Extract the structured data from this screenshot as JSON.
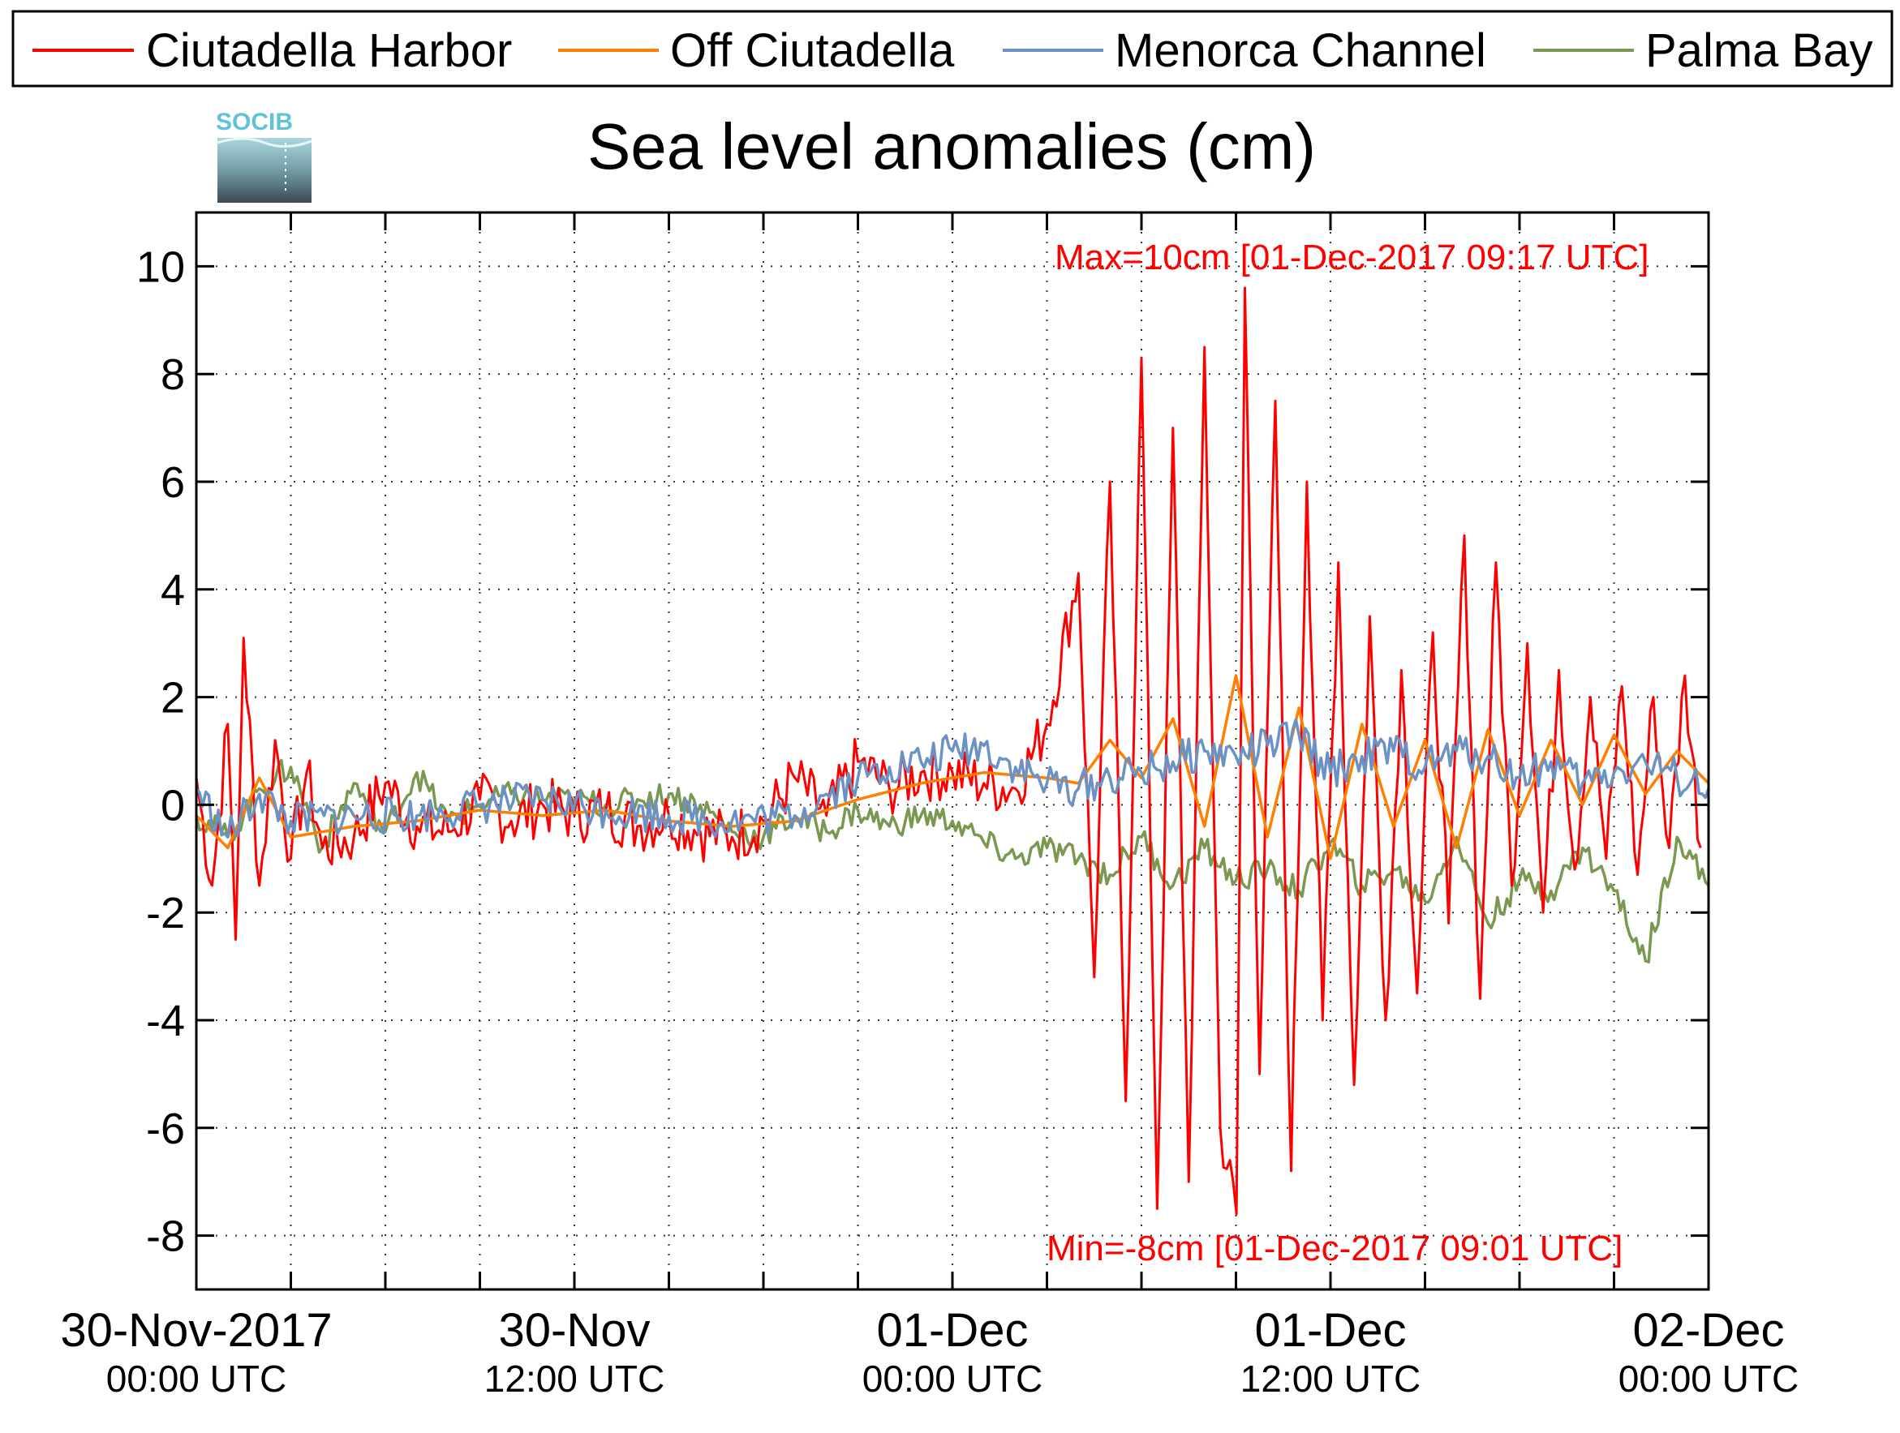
{
  "chart_data": {
    "type": "line",
    "title": "Sea level anomalies (cm)",
    "logo": "SOCIB",
    "xlabel": "",
    "ylabel": "",
    "ylim": [
      -9,
      11
    ],
    "yticks": [
      -8,
      -6,
      -4,
      -2,
      0,
      2,
      4,
      6,
      8,
      10
    ],
    "xlim": [
      "2017-11-30T00:00",
      "2017-12-02T00:00"
    ],
    "x_ticks": [
      {
        "date": "30-Nov-2017",
        "time": "00:00 UTC",
        "at": "2017-11-30T00:00"
      },
      {
        "date": "30-Nov",
        "time": "12:00 UTC",
        "at": "2017-11-30T12:00"
      },
      {
        "date": "01-Dec",
        "time": "00:00 UTC",
        "at": "2017-12-01T00:00"
      },
      {
        "date": "01-Dec",
        "time": "12:00 UTC",
        "at": "2017-12-01T12:00"
      },
      {
        "date": "02-Dec",
        "time": "00:00 UTC",
        "at": "2017-12-02T00:00"
      }
    ],
    "x_minor_ticks": [
      "2017-11-30T03:00",
      "2017-11-30T06:00",
      "2017-11-30T09:00",
      "2017-11-30T15:00",
      "2017-11-30T18:00",
      "2017-11-30T21:00",
      "2017-12-01T03:00",
      "2017-12-01T06:00",
      "2017-12-01T09:00",
      "2017-12-01T15:00",
      "2017-12-01T18:00",
      "2017-12-01T21:00"
    ],
    "grid": true,
    "legend_position": "top",
    "annotations": [
      {
        "text": "Max=10cm [01-Dec-2017 09:17 UTC]",
        "color": "#ff0000",
        "position": "top-right"
      },
      {
        "text": "Min=-8cm [01-Dec-2017 09:01 UTC]",
        "color": "#ff0000",
        "position": "bottom-right"
      }
    ],
    "series": [
      {
        "name": "Ciutadella Harbor",
        "color": "#ff0000",
        "x": [
          "2017-11-30T00:00",
          "2017-11-30T00:30",
          "2017-11-30T01:00",
          "2017-11-30T01:15",
          "2017-11-30T01:30",
          "2017-11-30T02:00",
          "2017-11-30T02:30",
          "2017-11-30T03:00",
          "2017-11-30T03:30",
          "2017-11-30T04:00",
          "2017-11-30T05:00",
          "2017-11-30T06:00",
          "2017-11-30T07:00",
          "2017-11-30T08:00",
          "2017-11-30T09:00",
          "2017-11-30T10:00",
          "2017-11-30T11:00",
          "2017-11-30T12:00",
          "2017-11-30T13:00",
          "2017-11-30T14:00",
          "2017-11-30T15:00",
          "2017-11-30T16:00",
          "2017-11-30T17:00",
          "2017-11-30T18:00",
          "2017-11-30T19:00",
          "2017-11-30T20:00",
          "2017-11-30T21:00",
          "2017-11-30T22:00",
          "2017-11-30T23:00",
          "2017-12-01T00:00",
          "2017-12-01T01:00",
          "2017-12-01T02:00",
          "2017-12-01T03:00",
          "2017-12-01T04:00",
          "2017-12-01T04:30",
          "2017-12-01T05:00",
          "2017-12-01T05:30",
          "2017-12-01T06:00",
          "2017-12-01T06:30",
          "2017-12-01T07:00",
          "2017-12-01T07:30",
          "2017-12-01T08:00",
          "2017-12-01T08:30",
          "2017-12-01T09:01",
          "2017-12-01T09:17",
          "2017-12-01T09:45",
          "2017-12-01T10:15",
          "2017-12-01T10:45",
          "2017-12-01T11:15",
          "2017-12-01T11:45",
          "2017-12-01T12:15",
          "2017-12-01T12:45",
          "2017-12-01T13:15",
          "2017-12-01T13:45",
          "2017-12-01T14:15",
          "2017-12-01T14:45",
          "2017-12-01T15:15",
          "2017-12-01T15:45",
          "2017-12-01T16:15",
          "2017-12-01T16:45",
          "2017-12-01T17:15",
          "2017-12-01T17:45",
          "2017-12-01T18:15",
          "2017-12-01T18:45",
          "2017-12-01T19:15",
          "2017-12-01T19:45",
          "2017-12-01T20:15",
          "2017-12-01T20:45",
          "2017-12-01T21:15",
          "2017-12-01T21:45",
          "2017-12-01T22:15",
          "2017-12-01T22:45",
          "2017-12-01T23:15",
          "2017-12-01T23:45"
        ],
        "values": [
          0.5,
          -1.5,
          1.5,
          -2.5,
          3.1,
          -1.5,
          1.2,
          -1.0,
          0.6,
          -0.8,
          -0.6,
          0.4,
          -0.4,
          -0.5,
          0.1,
          -0.3,
          0.0,
          -0.2,
          -0.1,
          -0.4,
          -0.2,
          -0.5,
          -0.6,
          -0.3,
          0.5,
          -0.2,
          0.8,
          0.3,
          0.6,
          0.6,
          0.4,
          0.3,
          1.5,
          4.3,
          -3.2,
          6.0,
          -5.5,
          8.3,
          -7.5,
          7.0,
          -7.0,
          8.5,
          -6.0,
          -7.6,
          9.6,
          -5.0,
          7.5,
          -6.8,
          6.0,
          -4.0,
          4.5,
          -5.2,
          3.5,
          -4.0,
          2.5,
          -3.5,
          3.2,
          -2.2,
          5.0,
          -3.6,
          4.5,
          -1.5,
          3.0,
          -2.0,
          2.5,
          -1.2,
          2.0,
          -1.0,
          2.2,
          -1.3,
          2.0,
          -0.8,
          2.4,
          -0.8
        ]
      },
      {
        "name": "Off Ciutadella",
        "color": "#ff7f00",
        "x": [
          "2017-11-30T00:00",
          "2017-11-30T01:00",
          "2017-11-30T02:00",
          "2017-11-30T03:00",
          "2017-11-30T05:00",
          "2017-11-30T07:00",
          "2017-11-30T09:00",
          "2017-11-30T11:00",
          "2017-11-30T13:00",
          "2017-11-30T15:00",
          "2017-11-30T17:00",
          "2017-11-30T19:00",
          "2017-11-30T21:00",
          "2017-11-30T23:00",
          "2017-12-01T01:00",
          "2017-12-01T03:00",
          "2017-12-01T04:00",
          "2017-12-01T05:00",
          "2017-12-01T06:00",
          "2017-12-01T07:00",
          "2017-12-01T08:00",
          "2017-12-01T09:00",
          "2017-12-01T10:00",
          "2017-12-01T11:00",
          "2017-12-01T12:00",
          "2017-12-01T13:00",
          "2017-12-01T14:00",
          "2017-12-01T15:00",
          "2017-12-01T16:00",
          "2017-12-01T17:00",
          "2017-12-01T18:00",
          "2017-12-01T19:00",
          "2017-12-01T20:00",
          "2017-12-01T21:00",
          "2017-12-01T22:00",
          "2017-12-01T23:00",
          "2017-12-02T00:00"
        ],
        "values": [
          -0.2,
          -0.8,
          0.5,
          -0.6,
          -0.4,
          -0.3,
          -0.1,
          -0.2,
          -0.1,
          -0.3,
          -0.4,
          -0.3,
          0.1,
          0.4,
          0.6,
          0.5,
          0.4,
          1.2,
          0.5,
          1.6,
          -0.4,
          2.4,
          -0.6,
          1.8,
          -1.0,
          1.5,
          -0.4,
          1.2,
          -0.8,
          1.4,
          -0.2,
          1.2,
          0.0,
          1.3,
          0.2,
          1.0,
          0.4
        ]
      },
      {
        "name": "Menorca Channel",
        "color": "#6b92c4",
        "x": [
          "2017-11-30T00:00",
          "2017-11-30T01:00",
          "2017-11-30T02:00",
          "2017-11-30T03:00",
          "2017-11-30T05:00",
          "2017-11-30T07:00",
          "2017-11-30T09:00",
          "2017-11-30T11:00",
          "2017-11-30T13:00",
          "2017-11-30T15:00",
          "2017-11-30T17:00",
          "2017-11-30T19:00",
          "2017-11-30T20:00",
          "2017-11-30T21:00",
          "2017-11-30T22:00",
          "2017-11-30T23:00",
          "2017-12-01T00:00",
          "2017-12-01T01:00",
          "2017-12-01T02:00",
          "2017-12-01T03:00",
          "2017-12-01T04:00",
          "2017-12-01T05:00",
          "2017-12-01T06:00",
          "2017-12-01T07:00",
          "2017-12-01T08:00",
          "2017-12-01T09:00",
          "2017-12-01T10:00",
          "2017-12-01T11:00",
          "2017-12-01T12:00",
          "2017-12-01T13:00",
          "2017-12-01T14:00",
          "2017-12-01T15:00",
          "2017-12-01T16:00",
          "2017-12-01T17:00",
          "2017-12-01T18:00",
          "2017-12-01T19:00",
          "2017-12-01T20:00",
          "2017-12-01T21:00",
          "2017-12-01T22:00",
          "2017-12-01T23:00",
          "2017-12-02T00:00"
        ],
        "values": [
          0.3,
          -0.6,
          0.2,
          -0.3,
          -0.2,
          -0.2,
          0.0,
          0.1,
          -0.1,
          -0.2,
          -0.3,
          -0.2,
          0.2,
          0.5,
          0.7,
          0.8,
          1.0,
          1.1,
          0.7,
          0.4,
          0.3,
          0.5,
          0.6,
          0.8,
          1.0,
          0.9,
          1.1,
          1.3,
          0.6,
          0.9,
          1.0,
          0.7,
          1.0,
          0.9,
          0.5,
          0.8,
          0.4,
          0.6,
          0.8,
          0.5,
          0.3
        ]
      },
      {
        "name": "Palma Bay",
        "color": "#7a9850",
        "x": [
          "2017-11-30T00:00",
          "2017-11-30T01:00",
          "2017-11-30T02:00",
          "2017-11-30T03:00",
          "2017-11-30T04:00",
          "2017-11-30T05:00",
          "2017-11-30T06:00",
          "2017-11-30T07:00",
          "2017-11-30T08:00",
          "2017-11-30T09:00",
          "2017-11-30T10:00",
          "2017-11-30T11:00",
          "2017-11-30T12:00",
          "2017-11-30T13:00",
          "2017-11-30T14:00",
          "2017-11-30T15:00",
          "2017-11-30T16:00",
          "2017-11-30T17:00",
          "2017-11-30T18:00",
          "2017-11-30T19:00",
          "2017-11-30T20:00",
          "2017-11-30T21:00",
          "2017-11-30T22:00",
          "2017-11-30T23:00",
          "2017-12-01T00:00",
          "2017-12-01T01:00",
          "2017-12-01T02:00",
          "2017-12-01T03:00",
          "2017-12-01T04:00",
          "2017-12-01T05:00",
          "2017-12-01T06:00",
          "2017-12-01T07:00",
          "2017-12-01T08:00",
          "2017-12-01T09:00",
          "2017-12-01T10:00",
          "2017-12-01T11:00",
          "2017-12-01T12:00",
          "2017-12-01T13:00",
          "2017-12-01T14:00",
          "2017-12-01T15:00",
          "2017-12-01T16:00",
          "2017-12-01T17:00",
          "2017-12-01T18:00",
          "2017-12-01T19:00",
          "2017-12-01T20:00",
          "2017-12-01T21:00",
          "2017-12-01T22:00",
          "2017-12-01T23:00",
          "2017-12-02T00:00"
        ],
        "values": [
          -0.2,
          -0.6,
          0.3,
          0.7,
          -0.8,
          0.4,
          -0.5,
          0.6,
          -0.3,
          0.0,
          0.2,
          0.1,
          0.1,
          0.0,
          0.1,
          0.2,
          0.0,
          -0.5,
          -0.6,
          -0.2,
          -0.5,
          -0.1,
          -0.4,
          -0.2,
          -0.3,
          -0.7,
          -1.0,
          -0.8,
          -1.0,
          -1.3,
          -0.6,
          -1.5,
          -0.8,
          -1.4,
          -1.2,
          -1.6,
          -0.7,
          -1.5,
          -1.2,
          -1.8,
          -0.6,
          -2.2,
          -1.4,
          -1.6,
          -0.8,
          -1.6,
          -2.9,
          -0.6,
          -1.5
        ]
      }
    ]
  }
}
